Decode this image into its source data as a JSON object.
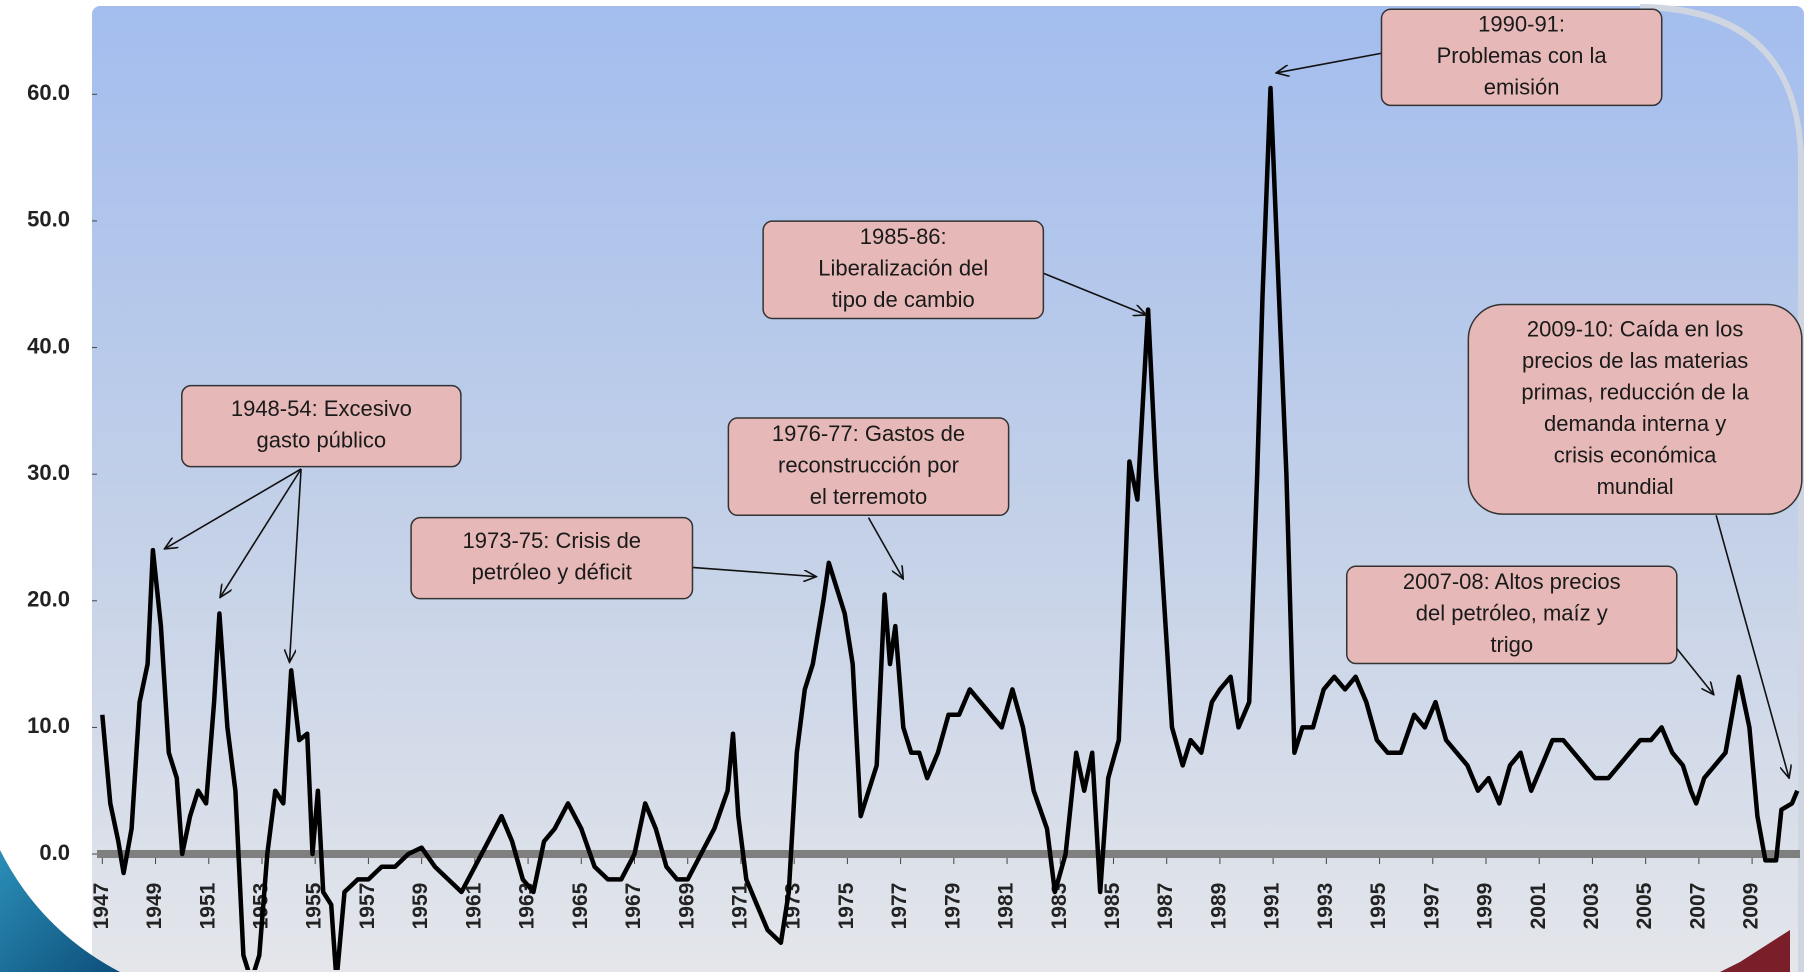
{
  "chart_data": {
    "type": "line",
    "x": [
      1947.0,
      1947.3,
      1947.6,
      1947.8,
      1948.1,
      1948.4,
      1948.7,
      1948.9,
      1949.2,
      1949.5,
      1949.8,
      1950.0,
      1950.3,
      1950.6,
      1950.9,
      1951.2,
      1951.4,
      1951.7,
      1952.0,
      1952.3,
      1952.6,
      1952.9,
      1953.2,
      1953.5,
      1953.8,
      1954.1,
      1954.4,
      1954.7,
      1954.9,
      1955.1,
      1955.3,
      1955.6,
      1955.8,
      1956.1,
      1956.6,
      1957.0,
      1957.5,
      1958.0,
      1958.5,
      1959.0,
      1959.5,
      1960.0,
      1960.5,
      1961.0,
      1961.5,
      1962.0,
      1962.4,
      1962.8,
      1963.2,
      1963.6,
      1964.0,
      1964.5,
      1965.0,
      1965.5,
      1966.0,
      1966.5,
      1967.0,
      1967.4,
      1967.8,
      1968.2,
      1968.6,
      1969.0,
      1969.5,
      1970.0,
      1970.5,
      1970.7,
      1970.9,
      1971.2,
      1971.6,
      1972.0,
      1972.5,
      1972.8,
      1973.1,
      1973.4,
      1973.7,
      1974.1,
      1974.3,
      1974.6,
      1974.9,
      1975.2,
      1975.5,
      1975.8,
      1976.1,
      1976.4,
      1976.6,
      1976.8,
      1977.1,
      1977.4,
      1977.7,
      1978.0,
      1978.4,
      1978.8,
      1979.2,
      1979.6,
      1980.0,
      1980.4,
      1980.8,
      1981.2,
      1981.6,
      1982.0,
      1982.5,
      1982.8,
      1983.2,
      1983.6,
      1983.9,
      1984.2,
      1984.5,
      1984.8,
      1985.2,
      1985.6,
      1985.9,
      1986.3,
      1986.6,
      1986.9,
      1987.2,
      1987.6,
      1987.9,
      1988.3,
      1988.7,
      1989.0,
      1989.4,
      1989.7,
      1990.1,
      1990.4,
      1990.6,
      1990.9,
      1991.2,
      1991.5,
      1991.8,
      1992.1,
      1992.5,
      1992.9,
      1993.3,
      1993.7,
      1994.1,
      1994.5,
      1994.9,
      1995.3,
      1995.8,
      1996.3,
      1996.7,
      1997.1,
      1997.5,
      1997.9,
      1998.3,
      1998.7,
      1999.1,
      1999.5,
      1999.9,
      2000.3,
      2000.7,
      2001.1,
      2001.5,
      2001.9,
      2002.3,
      2002.7,
      2003.1,
      2003.6,
      2004.0,
      2004.4,
      2004.8,
      2005.2,
      2005.6,
      2006.0,
      2006.4,
      2006.7,
      2006.9,
      2007.2,
      2007.6,
      2008.0,
      2008.5,
      2008.9,
      2009.2,
      2009.5,
      2009.9,
      2010.1,
      2010.5,
      2010.7
    ],
    "values": [
      11,
      4,
      1,
      -1.5,
      2,
      12,
      15,
      24,
      18,
      8,
      6,
      0,
      3,
      5,
      4,
      12,
      19,
      10,
      5,
      -8,
      -10,
      -8,
      0,
      5,
      4,
      14.5,
      9,
      9.5,
      0,
      5,
      -3,
      -4,
      -10,
      -3,
      -2,
      -2,
      -1,
      -1,
      0,
      0.5,
      -1,
      -2,
      -3,
      -1,
      1,
      3,
      1,
      -2,
      -3,
      1,
      2,
      4,
      2,
      -1,
      -2,
      -2,
      0,
      4,
      2,
      -1,
      -2,
      -2,
      0,
      2,
      5,
      9.5,
      3,
      -2,
      -4,
      -6,
      -7,
      -3,
      8,
      13,
      15,
      20,
      23,
      21,
      19,
      15,
      3,
      5,
      7,
      20.5,
      15,
      18,
      10,
      8,
      8,
      6,
      8,
      11,
      11,
      13,
      12,
      11,
      10,
      13,
      10,
      5,
      2,
      -3,
      0,
      8,
      5,
      8,
      -3,
      6,
      9,
      31,
      28,
      43,
      30,
      20,
      10,
      7,
      9,
      8,
      12,
      13,
      14,
      10,
      12,
      30,
      44,
      60.5,
      45,
      30,
      8,
      10,
      10,
      13,
      14,
      13,
      14,
      12,
      9,
      8,
      8,
      11,
      10,
      12,
      9,
      8,
      7,
      5,
      6,
      4,
      7,
      8,
      5,
      7,
      9,
      9,
      8,
      7,
      6,
      6,
      7,
      8,
      9,
      9,
      10,
      8,
      7,
      5,
      4,
      6,
      7,
      8,
      14,
      10,
      3,
      -0.5,
      -0.5,
      3.5,
      4,
      5
    ],
    "color": "#000000",
    "xlim": [
      1946.8,
      2010.8
    ],
    "xticks": [
      1947,
      1949,
      1951,
      1953,
      1955,
      1957,
      1959,
      1961,
      1963,
      1965,
      1967,
      1969,
      1971,
      1973,
      1975,
      1977,
      1979,
      1981,
      1983,
      1985,
      1987,
      1989,
      1991,
      1993,
      1995,
      1997,
      1999,
      2001,
      2003,
      2005,
      2007,
      2009
    ],
    "ylim": [
      -9,
      66.5
    ],
    "yticks": [
      {
        "value": 0,
        "label": "0.0"
      },
      {
        "value": 10,
        "label": "10.0"
      },
      {
        "value": 20,
        "label": "20.0"
      },
      {
        "value": 30,
        "label": "30.0"
      },
      {
        "value": 40,
        "label": "40.0"
      },
      {
        "value": 50,
        "label": "50.0"
      },
      {
        "value": 60,
        "label": "60.0"
      }
    ],
    "annotations": [
      {
        "text": [
          "1948-54: Excesivo",
          "gasto  público"
        ]
      },
      {
        "text": [
          "1973-75: Crisis de",
          "petróleo y déficit"
        ]
      },
      {
        "text": [
          "1976-77: Gastos de",
          "reconstrucción  por",
          "el terremoto"
        ]
      },
      {
        "text": [
          "1985-86:",
          "Liberalización del",
          "tipo de cambio"
        ]
      },
      {
        "text": [
          "1990-91:",
          "Problemas con la",
          "emisión"
        ]
      },
      {
        "text": [
          "2009-10: Caída en los",
          "precios de las materias",
          "primas, reducción de la",
          "demanda interna y",
          "crisis económica",
          "mundial"
        ]
      },
      {
        "text": [
          "2007-08: Altos precios",
          "del petróleo, maíz y",
          "trigo"
        ]
      }
    ]
  }
}
